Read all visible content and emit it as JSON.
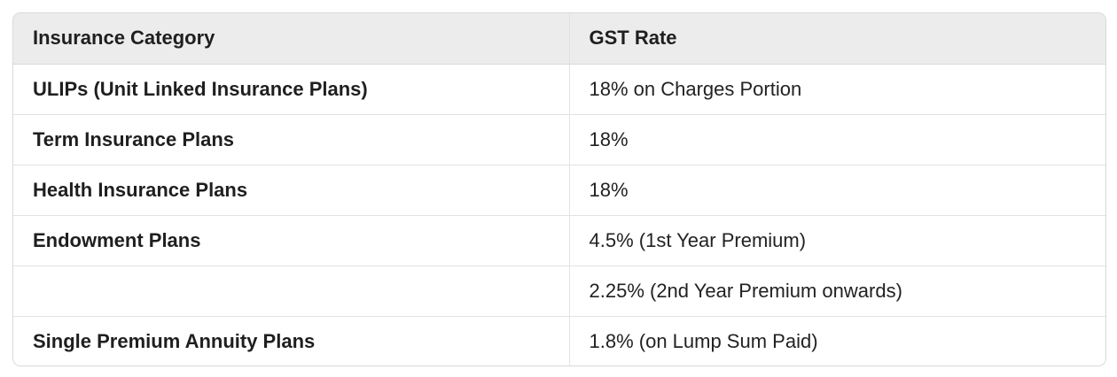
{
  "table": {
    "headers": [
      "Insurance Category",
      "GST Rate"
    ],
    "rows": [
      {
        "category": "ULIPs (Unit Linked Insurance Plans)",
        "rate": "18% on Charges Portion"
      },
      {
        "category": "Term Insurance Plans",
        "rate": "18%"
      },
      {
        "category": "Health Insurance Plans",
        "rate": "18%"
      },
      {
        "category": "Endowment Plans",
        "rate": "4.5% (1st Year Premium)"
      },
      {
        "category": "",
        "rate": "2.25% (2nd Year Premium onwards)"
      },
      {
        "category": "Single Premium Annuity Plans",
        "rate": "1.8% (on Lump Sum Paid)"
      }
    ]
  },
  "colors": {
    "header_background": "#ececec",
    "border": "#d9d9d9",
    "text": "#1f1f1f"
  }
}
